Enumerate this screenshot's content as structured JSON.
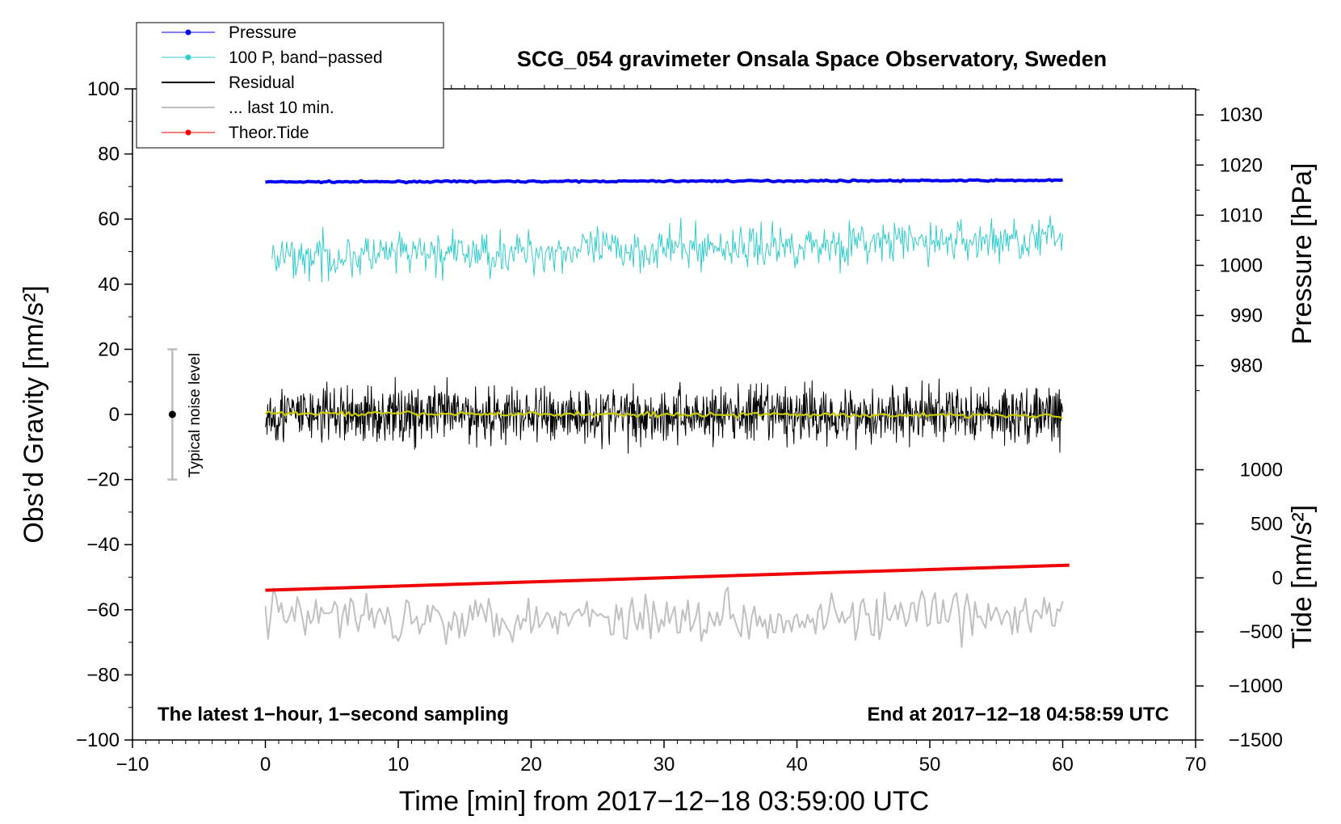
{
  "chart_data": {
    "type": "line",
    "title": "SCG_054 gravimeter Onsala Space Observatory, Sweden",
    "xlabel": "Time [min] from 2017−12−18 03:59:00 UTC",
    "ylabel_left": "Obs’d Gravity [nm/s²]",
    "ylabel_right_pressure": "Pressure [hPa]",
    "ylabel_right_tide": "Tide [nm/s²]",
    "xlim": [
      -10,
      70
    ],
    "ylim": [
      -100,
      100
    ],
    "x_ticks": [
      "−10",
      "0",
      "10",
      "20",
      "30",
      "40",
      "50",
      "60",
      "70"
    ],
    "y_ticks": [
      "−100",
      "−80",
      "−60",
      "−40",
      "−20",
      "0",
      "20",
      "40",
      "60",
      "80",
      "100"
    ],
    "pressure_ticks": [
      "980",
      "990",
      "1000",
      "1010",
      "1020",
      "1030"
    ],
    "tide_ticks": [
      "−1500",
      "−1000",
      "−500",
      "0",
      "500",
      "1000"
    ],
    "annotation_left": "The latest 1−hour, 1−second sampling",
    "annotation_right": "End at 2017−12−18 04:58:59 UTC",
    "noise_label": "Typical noise level",
    "noise_bar": {
      "x": -7,
      "center": 0,
      "low": -20,
      "high": 20
    },
    "legend": [
      {
        "label": "Pressure",
        "color": "#0000ee",
        "marker": true,
        "width": 1
      },
      {
        "label": "100 P, band−passed",
        "color": "#33cccc",
        "marker": true,
        "width": 1
      },
      {
        "label": "Residual",
        "color": "#000000",
        "marker": false,
        "width": 2
      },
      {
        "label": "... last 10 min.",
        "color": "#c0c0c0",
        "marker": false,
        "width": 2
      },
      {
        "label": "Theor.Tide",
        "color": "#ee0000",
        "marker": true,
        "width": 1
      }
    ],
    "series": [
      {
        "name": "Pressure",
        "color": "#0000ee",
        "x_range": [
          0,
          60
        ],
        "baseline": 71.4,
        "end": 71.9,
        "noise": 0.15,
        "samples": 300
      },
      {
        "name": "100 P, band−passed",
        "color": "#33cccc",
        "x_range": [
          0.5,
          60
        ],
        "baseline": 48,
        "end": 54,
        "noise": 4.5,
        "samples": 700
      },
      {
        "name": "Residual",
        "color": "#000000",
        "x_range": [
          0,
          60
        ],
        "baseline": 0,
        "end": 0,
        "noise": 6,
        "samples": 1400
      },
      {
        "name": "Residual smoothed",
        "color": "#cccc00",
        "x_range": [
          0,
          60
        ],
        "baseline": 0.3,
        "end": -0.3,
        "noise": 0.5,
        "samples": 240
      },
      {
        "name": "... last 10 min.",
        "color": "#c0c0c0",
        "x_range": [
          0,
          60
        ],
        "baseline": -62,
        "end": -62,
        "noise": 5,
        "samples": 300
      },
      {
        "name": "Theor.Tide",
        "color": "#ee0000",
        "x_range": [
          0,
          60.5
        ],
        "start": -54,
        "end_value": -46.3,
        "noise": 0,
        "samples": 2
      }
    ]
  }
}
